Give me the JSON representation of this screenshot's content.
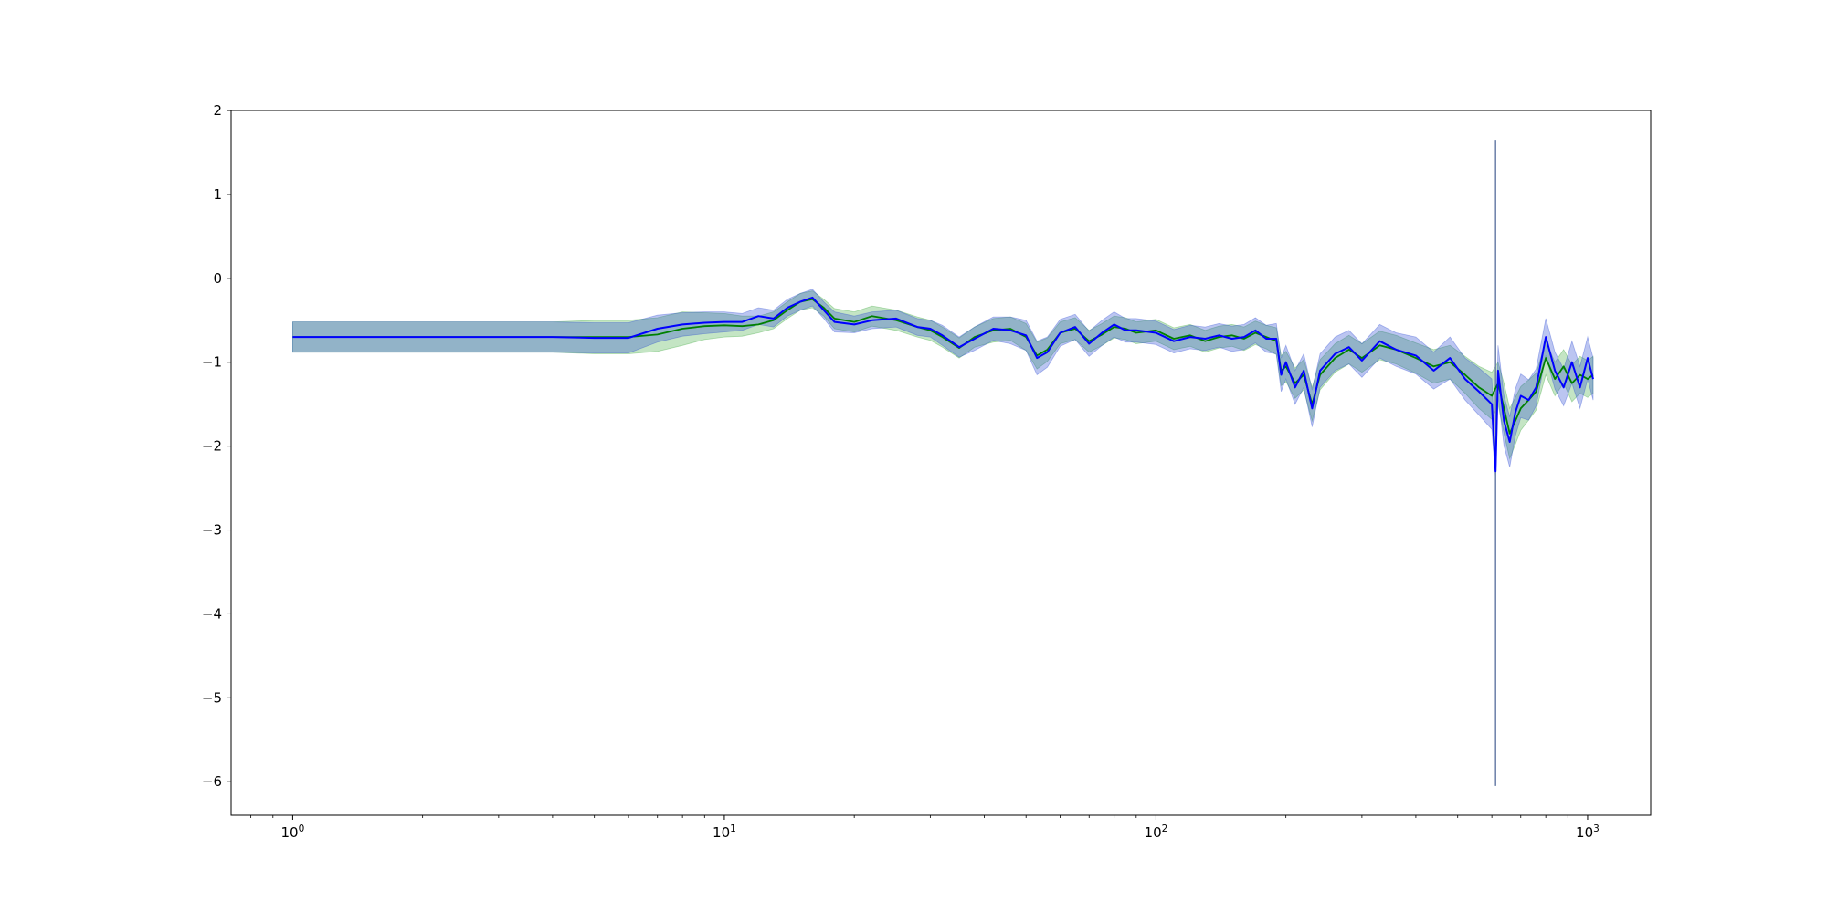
{
  "chart_data": {
    "type": "line",
    "title": "",
    "xlabel": "",
    "ylabel": "",
    "xscale": "log",
    "xlim": [
      0.72,
      1400
    ],
    "ylim": [
      -6.4,
      2.0
    ],
    "grid": false,
    "legend": "none",
    "xticks": [
      {
        "value": 1,
        "label_base": "10",
        "label_exp": "0"
      },
      {
        "value": 10,
        "label_base": "10",
        "label_exp": "1"
      },
      {
        "value": 100,
        "label_base": "10",
        "label_exp": "2"
      },
      {
        "value": 1000,
        "label_base": "10",
        "label_exp": "3"
      }
    ],
    "yticks": [
      {
        "value": 2,
        "label": "2"
      },
      {
        "value": 1,
        "label": "1"
      },
      {
        "value": 0,
        "label": "0"
      },
      {
        "value": -1,
        "label": "−1"
      },
      {
        "value": -2,
        "label": "−2"
      },
      {
        "value": -3,
        "label": "−3"
      },
      {
        "value": -4,
        "label": "−4"
      },
      {
        "value": -5,
        "label": "−5"
      },
      {
        "value": -6,
        "label": "−6"
      }
    ],
    "series": [
      {
        "color": "#008000",
        "band_color": "#2ca02c",
        "x": [
          1,
          2,
          4,
          5,
          6,
          7,
          8,
          9,
          10,
          11,
          12,
          13,
          14,
          15,
          16,
          17,
          18,
          20,
          22,
          25,
          28,
          30,
          32,
          35,
          38,
          42,
          46,
          50,
          53,
          56,
          60,
          65,
          70,
          75,
          80,
          85,
          90,
          100,
          110,
          120,
          130,
          140,
          150,
          160,
          170,
          180,
          190,
          195,
          200,
          210,
          220,
          230,
          240,
          260,
          280,
          300,
          330,
          360,
          400,
          440,
          480,
          520,
          560,
          600,
          620,
          640,
          660,
          680,
          700,
          730,
          760,
          800,
          840,
          880,
          920,
          960,
          1000,
          1030
        ],
        "y": [
          -0.7,
          -0.7,
          -0.7,
          -0.7,
          -0.7,
          -0.67,
          -0.6,
          -0.57,
          -0.56,
          -0.57,
          -0.55,
          -0.5,
          -0.38,
          -0.28,
          -0.25,
          -0.35,
          -0.48,
          -0.52,
          -0.45,
          -0.5,
          -0.58,
          -0.62,
          -0.7,
          -0.83,
          -0.7,
          -0.62,
          -0.6,
          -0.7,
          -0.92,
          -0.85,
          -0.65,
          -0.6,
          -0.75,
          -0.67,
          -0.58,
          -0.6,
          -0.65,
          -0.62,
          -0.72,
          -0.68,
          -0.75,
          -0.7,
          -0.68,
          -0.72,
          -0.65,
          -0.7,
          -0.75,
          -1.1,
          -1.05,
          -1.25,
          -1.15,
          -1.5,
          -1.15,
          -0.95,
          -0.85,
          -0.95,
          -0.8,
          -0.85,
          -0.95,
          -1.05,
          -1.0,
          -1.15,
          -1.3,
          -1.4,
          -1.25,
          -1.55,
          -1.85,
          -1.7,
          -1.55,
          -1.45,
          -1.35,
          -0.95,
          -1.2,
          -1.05,
          -1.25,
          -1.15,
          -1.2,
          -1.15
        ],
        "band": [
          0.18,
          0.18,
          0.18,
          0.2,
          0.2,
          0.2,
          0.2,
          0.16,
          0.14,
          0.12,
          0.1,
          0.1,
          0.1,
          0.1,
          0.1,
          0.1,
          0.12,
          0.12,
          0.12,
          0.12,
          0.12,
          0.12,
          0.12,
          0.12,
          0.12,
          0.14,
          0.14,
          0.16,
          0.16,
          0.14,
          0.13,
          0.13,
          0.13,
          0.13,
          0.13,
          0.13,
          0.13,
          0.13,
          0.13,
          0.13,
          0.13,
          0.13,
          0.13,
          0.14,
          0.14,
          0.14,
          0.16,
          0.18,
          0.18,
          0.18,
          0.18,
          0.2,
          0.18,
          0.17,
          0.17,
          0.17,
          0.17,
          0.17,
          0.18,
          0.2,
          0.2,
          0.22,
          0.25,
          0.28,
          0.25,
          0.3,
          0.3,
          0.28,
          0.26,
          0.24,
          0.22,
          0.2,
          0.2,
          0.2,
          0.22,
          0.22,
          0.22,
          0.22
        ]
      },
      {
        "color": "#0000ff",
        "band_color": "#1f3fd0",
        "x": [
          1,
          2,
          4,
          5,
          6,
          7,
          8,
          9,
          10,
          11,
          12,
          13,
          14,
          15,
          16,
          17,
          18,
          20,
          22,
          25,
          28,
          30,
          32,
          35,
          38,
          42,
          46,
          50,
          53,
          56,
          60,
          65,
          70,
          75,
          80,
          85,
          90,
          100,
          110,
          120,
          130,
          140,
          150,
          160,
          170,
          180,
          190,
          195,
          200,
          210,
          220,
          230,
          240,
          260,
          280,
          300,
          330,
          360,
          400,
          440,
          480,
          520,
          560,
          600,
          612,
          620,
          640,
          660,
          680,
          700,
          730,
          760,
          800,
          840,
          880,
          920,
          960,
          1000,
          1030
        ],
        "y": [
          -0.7,
          -0.7,
          -0.7,
          -0.71,
          -0.71,
          -0.6,
          -0.55,
          -0.53,
          -0.52,
          -0.52,
          -0.45,
          -0.48,
          -0.35,
          -0.28,
          -0.23,
          -0.38,
          -0.52,
          -0.55,
          -0.5,
          -0.48,
          -0.58,
          -0.6,
          -0.68,
          -0.82,
          -0.72,
          -0.6,
          -0.62,
          -0.68,
          -0.95,
          -0.88,
          -0.65,
          -0.58,
          -0.78,
          -0.65,
          -0.55,
          -0.62,
          -0.62,
          -0.65,
          -0.75,
          -0.7,
          -0.72,
          -0.68,
          -0.72,
          -0.7,
          -0.62,
          -0.72,
          -0.72,
          -1.15,
          -1.0,
          -1.3,
          -1.1,
          -1.55,
          -1.1,
          -0.9,
          -0.82,
          -0.98,
          -0.75,
          -0.85,
          -0.92,
          -1.1,
          -0.95,
          -1.2,
          -1.35,
          -1.5,
          -2.3,
          -1.1,
          -1.7,
          -1.95,
          -1.6,
          -1.4,
          -1.45,
          -1.3,
          -0.7,
          -1.1,
          -1.3,
          -1.0,
          -1.3,
          -0.95,
          -1.2
        ],
        "band": [
          0.18,
          0.18,
          0.18,
          0.18,
          0.18,
          0.16,
          0.14,
          0.13,
          0.12,
          0.1,
          0.1,
          0.1,
          0.1,
          0.1,
          0.1,
          0.1,
          0.12,
          0.1,
          0.1,
          0.1,
          0.1,
          0.1,
          0.12,
          0.12,
          0.14,
          0.14,
          0.16,
          0.18,
          0.2,
          0.18,
          0.16,
          0.15,
          0.15,
          0.15,
          0.15,
          0.14,
          0.14,
          0.14,
          0.14,
          0.14,
          0.14,
          0.14,
          0.15,
          0.15,
          0.15,
          0.16,
          0.18,
          0.2,
          0.2,
          0.2,
          0.2,
          0.22,
          0.2,
          0.2,
          0.2,
          0.2,
          0.2,
          0.2,
          0.22,
          0.22,
          0.25,
          0.25,
          0.28,
          0.3,
          0.1,
          0.3,
          0.3,
          0.3,
          0.28,
          0.26,
          0.24,
          0.22,
          0.22,
          0.22,
          0.22,
          0.25,
          0.25,
          0.25,
          0.25
        ]
      }
    ],
    "spike": {
      "x": 612,
      "y_top": 1.65,
      "y_bottom": -6.05
    }
  }
}
